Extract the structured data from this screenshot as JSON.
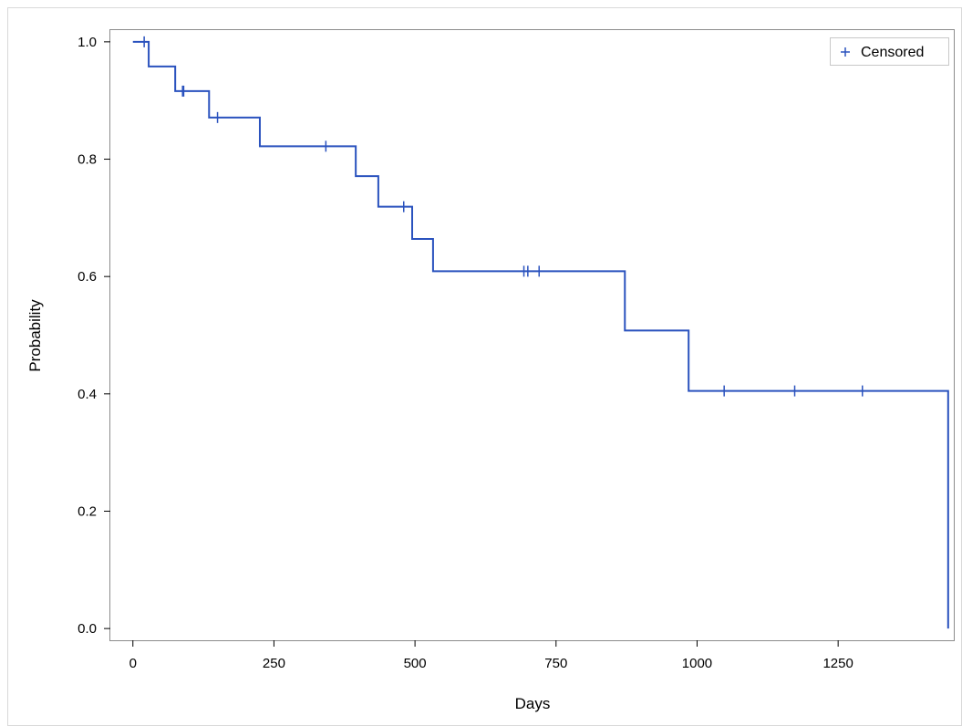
{
  "chart_data": {
    "type": "line",
    "subtype": "step",
    "xlabel": "Days",
    "ylabel": "Probability",
    "xlim": [
      -40,
      1455
    ],
    "ylim": [
      -0.02,
      1.02
    ],
    "xticks": [
      0,
      250,
      500,
      750,
      1000,
      1250
    ],
    "xtick_labels": [
      "0",
      "250",
      "500",
      "750",
      "1000",
      "1250"
    ],
    "yticks": [
      0.0,
      0.2,
      0.4,
      0.6,
      0.8,
      1.0
    ],
    "ytick_labels": [
      "0.0",
      "0.2",
      "0.4",
      "0.6",
      "0.8",
      "1.0"
    ],
    "grid": false,
    "legend_position": "top-right",
    "legend": [
      {
        "label": "Censored",
        "marker": "plus"
      }
    ],
    "color": "#2a52be",
    "series": [
      {
        "x": [
          0,
          28,
          75,
          135,
          225,
          395,
          435,
          495,
          532,
          872,
          985,
          1445
        ],
        "y": [
          1.0,
          0.958,
          0.916,
          0.871,
          0.822,
          0.771,
          0.719,
          0.664,
          0.609,
          0.508,
          0.405,
          0.0
        ]
      }
    ],
    "censored": {
      "x": [
        20,
        88,
        90,
        150,
        342,
        480,
        693,
        700,
        720,
        1048,
        1173,
        1293
      ],
      "y": [
        1.0,
        0.916,
        0.916,
        0.871,
        0.822,
        0.719,
        0.609,
        0.609,
        0.609,
        0.405,
        0.405,
        0.405
      ]
    }
  }
}
